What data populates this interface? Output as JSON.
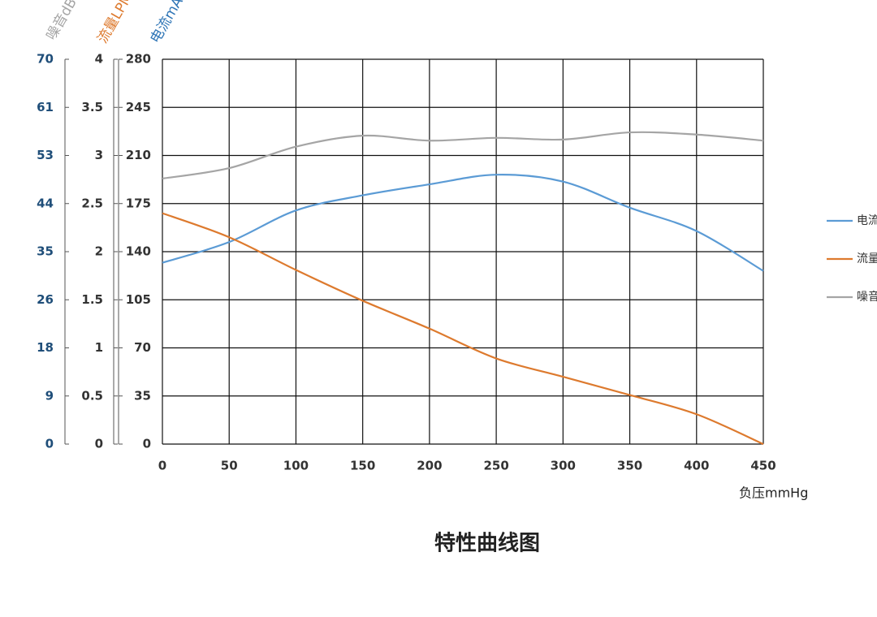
{
  "chart_data": {
    "type": "line",
    "title": "特性曲线图",
    "xlabel": "负压mmHg",
    "ylabel": "电流mA",
    "y2label": "流量LPM",
    "y3label": "噪音dB",
    "x": [
      0,
      50,
      100,
      150,
      200,
      250,
      300,
      350,
      400,
      450
    ],
    "xlim": [
      0,
      450
    ],
    "xticks": [
      0,
      50,
      100,
      150,
      200,
      250,
      300,
      350,
      400,
      450
    ],
    "ylim": [
      0,
      280
    ],
    "yticks": [
      0,
      35,
      70,
      105,
      140,
      175,
      210,
      245,
      280
    ],
    "y2lim": [
      0,
      4
    ],
    "y2ticks": [
      0,
      0.5,
      1,
      1.5,
      2,
      2.5,
      3,
      3.5,
      4
    ],
    "y3lim": [
      0,
      70
    ],
    "y3ticks": [
      0,
      {
        "value": 8.75,
        "label": "9"
      },
      {
        "value": 17.5,
        "label": "18"
      },
      {
        "value": 26.25,
        "label": "26"
      },
      35,
      {
        "value": 43.75,
        "label": "44"
      },
      {
        "value": 52.5,
        "label": "53"
      },
      {
        "value": 61.25,
        "label": "61"
      },
      70
    ],
    "grid": true,
    "legend": "right",
    "series": [
      {
        "name": "电流mA",
        "color": "#5b9bd5",
        "axis": "y",
        "values": [
          132,
          147,
          170,
          181,
          189,
          196,
          191,
          172,
          155,
          126
        ]
      },
      {
        "name": "流量LPM",
        "color": "#dd7a2e",
        "axis": "y2",
        "values": [
          2.4,
          2.15,
          1.81,
          1.49,
          1.2,
          0.89,
          0.7,
          0.51,
          0.31,
          0
        ]
      },
      {
        "name": "噪音dB",
        "color": "#a5a5a5",
        "axis": "y3",
        "values": [
          48.3,
          50.2,
          54.1,
          56.1,
          55.2,
          55.7,
          55.4,
          56.7,
          56.3,
          55.2
        ]
      }
    ]
  }
}
